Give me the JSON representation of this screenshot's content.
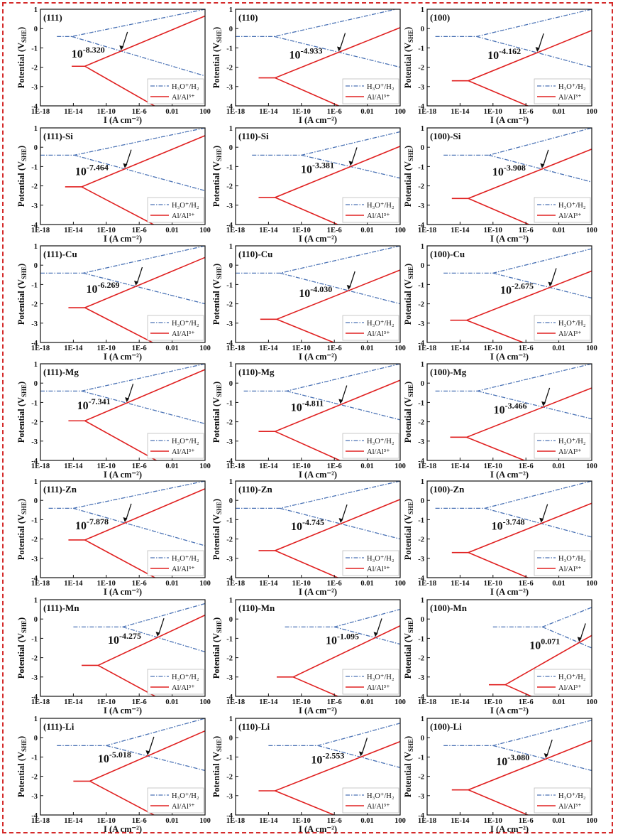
{
  "colors": {
    "h3o": "#4a72b5",
    "al": "#e02020",
    "frame": "#d42a2a",
    "arrow": "#111111"
  },
  "axes": {
    "xlabel": "I (A cm⁻²)",
    "ylabel": "Potential (V",
    "ylabel_sub": "SHE",
    "ylabel_close": ")",
    "xticks": [
      "1E-18",
      "1E-14",
      "1E-10",
      "1E-6",
      "0.01",
      "100"
    ],
    "xtick_exponents": [
      -18,
      -14,
      -10,
      -6,
      -2,
      2
    ],
    "yticks": [
      "1",
      "0",
      "-1",
      "-2",
      "-3",
      "-4"
    ],
    "ytick_values": [
      1,
      0,
      -1,
      -2,
      -3,
      -4
    ],
    "xlim_log10": [
      -18,
      2
    ],
    "ylim": [
      -4,
      1
    ]
  },
  "legend": [
    {
      "name": "H3O+/H2",
      "label": "H₃O⁺/H₂",
      "style": "dash-dot"
    },
    {
      "name": "Al/Al3+",
      "label": "Al/Al³⁺",
      "style": "solid"
    }
  ],
  "chart_data": [
    {
      "type": "line",
      "panel": "(111)",
      "exponent": "-8.320",
      "h3o": {
        "start_log10": -16,
        "corner_log10": -14.2,
        "e_eq": -0.41,
        "e_top": 1.0,
        "e_bot": -2.45
      },
      "al": {
        "start_log10": -14.2,
        "corner_log10": -12.6,
        "e_eq": -1.95,
        "e_top": 0.65,
        "e_bot": -5.5
      }
    },
    {
      "type": "line",
      "panel": "(110)",
      "exponent": "-4.933",
      "h3o": {
        "start_log10": -18,
        "corner_log10": -13.3,
        "e_eq": -0.41,
        "e_top": 1.05,
        "e_bot": -2.0
      },
      "al": {
        "start_log10": -15.2,
        "corner_log10": -13.2,
        "e_eq": -2.55,
        "e_top": 0.05,
        "e_bot": -5.4
      }
    },
    {
      "type": "line",
      "panel": "(100)",
      "exponent": "-4.162",
      "h3o": {
        "start_log10": -17,
        "corner_log10": -12.0,
        "e_eq": -0.41,
        "e_top": 1.0,
        "e_bot": -2.0
      },
      "al": {
        "start_log10": -15.0,
        "corner_log10": -13.0,
        "e_eq": -2.7,
        "e_top": -0.1,
        "e_bot": -5.4
      }
    },
    {
      "type": "line",
      "panel": "(111)-Si",
      "exponent": "-7.464",
      "h3o": {
        "start_log10": -18,
        "corner_log10": -13.9,
        "e_eq": -0.41,
        "e_top": 1.0,
        "e_bot": -2.25
      },
      "al": {
        "start_log10": -15.0,
        "corner_log10": -13.0,
        "e_eq": -2.05,
        "e_top": 0.6,
        "e_bot": -5.4
      }
    },
    {
      "type": "line",
      "panel": "(110)-Si",
      "exponent": "-3.381",
      "h3o": {
        "start_log10": -16,
        "corner_log10": -10.0,
        "e_eq": -0.41,
        "e_top": 0.8,
        "e_bot": -1.6
      },
      "al": {
        "start_log10": -15.2,
        "corner_log10": -13.2,
        "e_eq": -2.6,
        "e_top": 0.05,
        "e_bot": -5.4
      }
    },
    {
      "type": "line",
      "panel": "(100)-Si",
      "exponent": "-3.908",
      "h3o": {
        "start_log10": -16,
        "corner_log10": -10.5,
        "e_eq": -0.41,
        "e_top": 1.0,
        "e_bot": -1.8
      },
      "al": {
        "start_log10": -15.0,
        "corner_log10": -13.0,
        "e_eq": -2.65,
        "e_top": -0.1,
        "e_bot": -5.4
      }
    },
    {
      "type": "line",
      "panel": "(111)-Cu",
      "exponent": "-6.269",
      "h3o": {
        "start_log10": -18,
        "corner_log10": -12.8,
        "e_eq": -0.41,
        "e_top": 1.0,
        "e_bot": -2.0
      },
      "al": {
        "start_log10": -14.6,
        "corner_log10": -12.6,
        "e_eq": -2.2,
        "e_top": 0.4,
        "e_bot": -5.4
      }
    },
    {
      "type": "line",
      "panel": "(110)-Cu",
      "exponent": "-4.030",
      "h3o": {
        "start_log10": -18,
        "corner_log10": -12.6,
        "e_eq": -0.41,
        "e_top": 1.0,
        "e_bot": -2.0
      },
      "al": {
        "start_log10": -15.0,
        "corner_log10": -13.0,
        "e_eq": -2.8,
        "e_top": -0.25,
        "e_bot": -5.4
      }
    },
    {
      "type": "line",
      "panel": "(100)-Cu",
      "exponent": "-2.675",
      "h3o": {
        "start_log10": -16,
        "corner_log10": -10.0,
        "e_eq": -0.41,
        "e_top": 0.85,
        "e_bot": -1.7
      },
      "al": {
        "start_log10": -15.2,
        "corner_log10": -13.2,
        "e_eq": -2.85,
        "e_top": -0.3,
        "e_bot": -5.4
      }
    },
    {
      "type": "line",
      "panel": "(111)-Mg",
      "exponent": "-7.341",
      "h3o": {
        "start_log10": -18,
        "corner_log10": -13.0,
        "e_eq": -0.41,
        "e_top": 1.0,
        "e_bot": -2.1
      },
      "al": {
        "start_log10": -14.6,
        "corner_log10": -12.6,
        "e_eq": -1.95,
        "e_top": 0.7,
        "e_bot": -5.4
      }
    },
    {
      "type": "line",
      "panel": "(110)-Mg",
      "exponent": "-4.811",
      "h3o": {
        "start_log10": -17,
        "corner_log10": -11.8,
        "e_eq": -0.41,
        "e_top": 1.0,
        "e_bot": -1.9
      },
      "al": {
        "start_log10": -15.2,
        "corner_log10": -13.2,
        "e_eq": -2.5,
        "e_top": 0.15,
        "e_bot": -5.4
      }
    },
    {
      "type": "line",
      "panel": "(100)-Mg",
      "exponent": "-3.466",
      "h3o": {
        "start_log10": -17,
        "corner_log10": -11.9,
        "e_eq": -0.41,
        "e_top": 1.0,
        "e_bot": -1.85
      },
      "al": {
        "start_log10": -15.2,
        "corner_log10": -13.2,
        "e_eq": -2.8,
        "e_top": -0.25,
        "e_bot": -5.4
      }
    },
    {
      "type": "line",
      "panel": "(111)-Zn",
      "exponent": "-7.878",
      "h3o": {
        "start_log10": -17,
        "corner_log10": -14.0,
        "e_eq": -0.41,
        "e_top": 1.0,
        "e_bot": -2.35
      },
      "al": {
        "start_log10": -14.6,
        "corner_log10": -12.6,
        "e_eq": -2.05,
        "e_top": 0.6,
        "e_bot": -5.4
      }
    },
    {
      "type": "line",
      "panel": "(110)-Zn",
      "exponent": "-4.745",
      "h3o": {
        "start_log10": -18,
        "corner_log10": -12.6,
        "e_eq": -0.41,
        "e_top": 1.0,
        "e_bot": -2.0
      },
      "al": {
        "start_log10": -15.2,
        "corner_log10": -13.2,
        "e_eq": -2.6,
        "e_top": 0.05,
        "e_bot": -5.4
      }
    },
    {
      "type": "line",
      "panel": "(100)-Zn",
      "exponent": "-3.748",
      "h3o": {
        "start_log10": -17,
        "corner_log10": -11.0,
        "e_eq": -0.41,
        "e_top": 1.0,
        "e_bot": -1.9
      },
      "al": {
        "start_log10": -15.0,
        "corner_log10": -13.0,
        "e_eq": -2.7,
        "e_top": -0.15,
        "e_bot": -5.4
      }
    },
    {
      "type": "line",
      "panel": "(111)-Mn",
      "exponent": "-4.275",
      "h3o": {
        "start_log10": -14,
        "corner_log10": -8.0,
        "e_eq": -0.41,
        "e_top": 0.8,
        "e_bot": -1.7
      },
      "al": {
        "start_log10": -13.0,
        "corner_log10": -11.0,
        "e_eq": -2.4,
        "e_top": 0.2,
        "e_bot": -5.4
      }
    },
    {
      "type": "line",
      "panel": "(110)-Mn",
      "exponent": "-1.095",
      "h3o": {
        "start_log10": -12,
        "corner_log10": -6.0,
        "e_eq": -0.41,
        "e_top": 0.5,
        "e_bot": -1.3
      },
      "al": {
        "start_log10": -13.0,
        "corner_log10": -11.0,
        "e_eq": -3.0,
        "e_top": -0.35,
        "e_bot": -5.4
      }
    },
    {
      "type": "line",
      "panel": "(100)-Mn",
      "exponent": "0.071",
      "h3o": {
        "start_log10": -10,
        "corner_log10": -4.0,
        "e_eq": -0.41,
        "e_top": 0.6,
        "e_bot": -1.5
      },
      "al": {
        "start_log10": -10.5,
        "corner_log10": -8.5,
        "e_eq": -3.4,
        "e_top": -0.85,
        "e_bot": -5.4
      }
    },
    {
      "type": "line",
      "panel": "(111)-Li",
      "exponent": "-5.018",
      "h3o": {
        "start_log10": -16,
        "corner_log10": -10.0,
        "e_eq": -0.41,
        "e_top": 1.0,
        "e_bot": -1.7
      },
      "al": {
        "start_log10": -14.0,
        "corner_log10": -12.0,
        "e_eq": -2.25,
        "e_top": 0.35,
        "e_bot": -5.4
      }
    },
    {
      "type": "line",
      "panel": "(110)-Li",
      "exponent": "-2.553",
      "h3o": {
        "start_log10": -14,
        "corner_log10": -8.0,
        "e_eq": -0.41,
        "e_top": 0.75,
        "e_bot": -1.55
      },
      "al": {
        "start_log10": -15.2,
        "corner_log10": -13.2,
        "e_eq": -2.75,
        "e_top": -0.2,
        "e_bot": -5.4
      }
    },
    {
      "type": "line",
      "panel": "(100)-Li",
      "exponent": "-3.080",
      "h3o": {
        "start_log10": -16,
        "corner_log10": -10.0,
        "e_eq": -0.41,
        "e_top": 0.9,
        "e_bot": -1.7
      },
      "al": {
        "start_log10": -15.0,
        "corner_log10": -13.0,
        "e_eq": -2.7,
        "e_top": -0.15,
        "e_bot": -5.4
      }
    }
  ]
}
